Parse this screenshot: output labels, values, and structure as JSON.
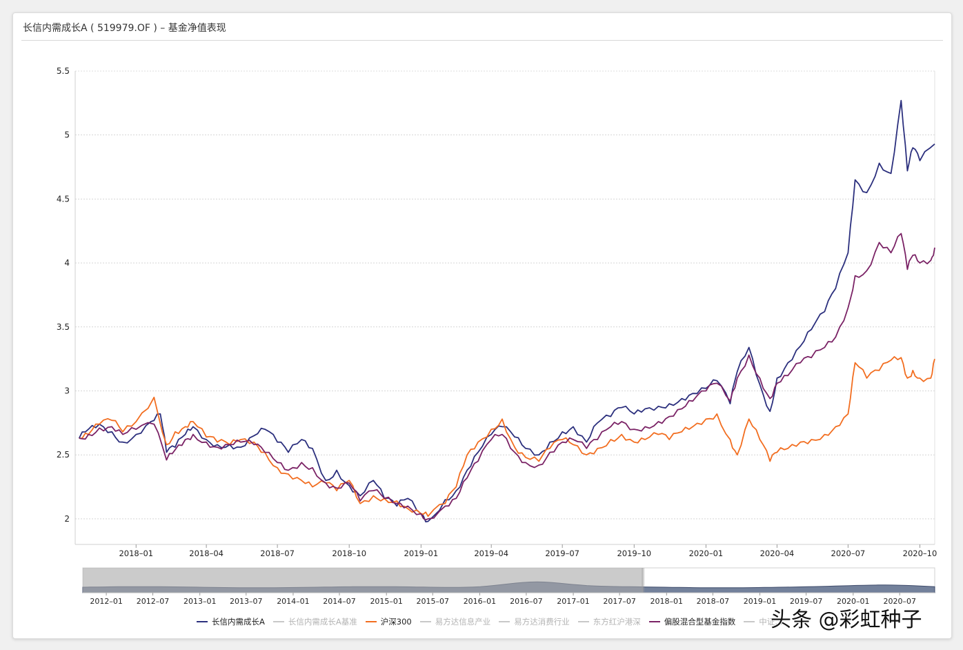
{
  "window": {
    "title": "长信内需成长A ( 519979.OF ) – 基金净值表现"
  },
  "watermark": "头条 @彩虹种子",
  "colors": {
    "fund": "#2b2f7d",
    "csi300": "#f26d1f",
    "mixed_index": "#7a2265",
    "inactive": "#c8c8c8",
    "grid": "#bdbdbd"
  },
  "legend": [
    {
      "name": "长信内需成长A",
      "color": "#2b2f7d",
      "active": true
    },
    {
      "name": "长信内需成长A基准",
      "color": "#c8c8c8",
      "active": false
    },
    {
      "name": "沪深300",
      "color": "#f26d1f",
      "active": true
    },
    {
      "name": "易方达信息产业",
      "color": "#c8c8c8",
      "active": false
    },
    {
      "name": "易方达消费行业",
      "color": "#c8c8c8",
      "active": false
    },
    {
      "name": "东方红沪港深",
      "color": "#c8c8c8",
      "active": false
    },
    {
      "name": "偏股混合型基金指数",
      "color": "#7a2265",
      "active": true
    },
    {
      "name": "中证…",
      "color": "#c8c8c8",
      "active": false
    }
  ],
  "navigator": {
    "tick_labels": [
      "2012–01",
      "2012–07",
      "2013–01",
      "2013–07",
      "2014–01",
      "2014–07",
      "2015–01",
      "2015–07",
      "2016–01",
      "2016–07",
      "2017–01",
      "2017–07",
      "2018–01",
      "2018–07",
      "2019–01",
      "2019–07",
      "2020–01",
      "2020–07"
    ],
    "selection_start": "2017-10"
  },
  "chart_data": {
    "type": "line",
    "x_axis_labels": [
      "2018–01",
      "2018–04",
      "2018–07",
      "2018–10",
      "2019–01",
      "2019–04",
      "2019–07",
      "2019–10",
      "2020–01",
      "2020–04",
      "2020–07",
      "2020–10"
    ],
    "y_axis_labels": [
      "5.5",
      "5",
      "4.5",
      "4",
      "3.5",
      "3",
      "2.5",
      "2"
    ],
    "ylim": [
      1.8,
      5.5
    ],
    "xlim": [
      "2017-10-15",
      "2020-10-20"
    ],
    "grid": true,
    "legend_position": "bottom",
    "series": [
      {
        "name": "长信内需成长A",
        "color": "#2b2f7d",
        "points": [
          [
            "2017-10-20",
            2.63
          ],
          [
            "2017-11-01",
            2.7
          ],
          [
            "2017-11-15",
            2.74
          ],
          [
            "2017-12-01",
            2.68
          ],
          [
            "2017-12-15",
            2.6
          ],
          [
            "2018-01-01",
            2.66
          ],
          [
            "2018-01-20",
            2.76
          ],
          [
            "2018-02-01",
            2.82
          ],
          [
            "2018-02-09",
            2.52
          ],
          [
            "2018-02-20",
            2.56
          ],
          [
            "2018-03-05",
            2.66
          ],
          [
            "2018-03-15",
            2.72
          ],
          [
            "2018-04-01",
            2.62
          ],
          [
            "2018-04-15",
            2.58
          ],
          [
            "2018-05-01",
            2.58
          ],
          [
            "2018-05-15",
            2.56
          ],
          [
            "2018-06-01",
            2.65
          ],
          [
            "2018-06-15",
            2.7
          ],
          [
            "2018-07-01",
            2.6
          ],
          [
            "2018-07-15",
            2.52
          ],
          [
            "2018-08-01",
            2.62
          ],
          [
            "2018-08-15",
            2.55
          ],
          [
            "2018-09-01",
            2.3
          ],
          [
            "2018-09-15",
            2.38
          ],
          [
            "2018-10-01",
            2.26
          ],
          [
            "2018-10-15",
            2.18
          ],
          [
            "2018-11-01",
            2.3
          ],
          [
            "2018-11-15",
            2.16
          ],
          [
            "2018-12-01",
            2.1
          ],
          [
            "2018-12-15",
            2.16
          ],
          [
            "2019-01-01",
            2.04
          ],
          [
            "2019-01-10",
            1.98
          ],
          [
            "2019-02-01",
            2.15
          ],
          [
            "2019-02-15",
            2.22
          ],
          [
            "2019-03-01",
            2.38
          ],
          [
            "2019-03-15",
            2.52
          ],
          [
            "2019-04-01",
            2.66
          ],
          [
            "2019-04-15",
            2.72
          ],
          [
            "2019-05-01",
            2.64
          ],
          [
            "2019-05-15",
            2.55
          ],
          [
            "2019-06-01",
            2.5
          ],
          [
            "2019-06-15",
            2.6
          ],
          [
            "2019-07-01",
            2.68
          ],
          [
            "2019-07-15",
            2.72
          ],
          [
            "2019-08-01",
            2.6
          ],
          [
            "2019-08-15",
            2.75
          ],
          [
            "2019-09-01",
            2.8
          ],
          [
            "2019-09-15",
            2.87
          ],
          [
            "2019-10-01",
            2.82
          ],
          [
            "2019-10-15",
            2.86
          ],
          [
            "2019-11-01",
            2.88
          ],
          [
            "2019-11-15",
            2.9
          ],
          [
            "2019-12-01",
            2.94
          ],
          [
            "2019-12-15",
            2.98
          ],
          [
            "2020-01-01",
            3.02
          ],
          [
            "2020-01-15",
            3.08
          ],
          [
            "2020-02-01",
            2.9
          ],
          [
            "2020-02-10",
            3.15
          ],
          [
            "2020-02-25",
            3.34
          ],
          [
            "2020-03-10",
            3.05
          ],
          [
            "2020-03-23",
            2.84
          ],
          [
            "2020-04-01",
            3.1
          ],
          [
            "2020-04-15",
            3.22
          ],
          [
            "2020-05-01",
            3.35
          ],
          [
            "2020-05-15",
            3.48
          ],
          [
            "2020-06-01",
            3.62
          ],
          [
            "2020-06-15",
            3.8
          ],
          [
            "2020-07-01",
            4.08
          ],
          [
            "2020-07-10",
            4.65
          ],
          [
            "2020-07-25",
            4.55
          ],
          [
            "2020-08-10",
            4.78
          ],
          [
            "2020-08-25",
            4.7
          ],
          [
            "2020-09-07",
            5.27
          ],
          [
            "2020-09-15",
            4.72
          ],
          [
            "2020-09-22",
            4.9
          ],
          [
            "2020-10-01",
            4.8
          ],
          [
            "2020-10-20",
            4.93
          ]
        ]
      },
      {
        "name": "沪深300",
        "color": "#f26d1f",
        "points": [
          [
            "2017-10-20",
            2.63
          ],
          [
            "2017-11-01",
            2.66
          ],
          [
            "2017-11-15",
            2.74
          ],
          [
            "2017-12-01",
            2.77
          ],
          [
            "2017-12-15",
            2.68
          ],
          [
            "2018-01-01",
            2.76
          ],
          [
            "2018-01-24",
            2.95
          ],
          [
            "2018-02-09",
            2.58
          ],
          [
            "2018-02-20",
            2.68
          ],
          [
            "2018-03-05",
            2.72
          ],
          [
            "2018-03-15",
            2.76
          ],
          [
            "2018-04-01",
            2.64
          ],
          [
            "2018-04-15",
            2.6
          ],
          [
            "2018-05-01",
            2.58
          ],
          [
            "2018-05-15",
            2.62
          ],
          [
            "2018-06-01",
            2.6
          ],
          [
            "2018-06-15",
            2.52
          ],
          [
            "2018-07-01",
            2.4
          ],
          [
            "2018-07-15",
            2.35
          ],
          [
            "2018-08-01",
            2.3
          ],
          [
            "2018-08-15",
            2.25
          ],
          [
            "2018-09-01",
            2.28
          ],
          [
            "2018-09-15",
            2.22
          ],
          [
            "2018-10-01",
            2.3
          ],
          [
            "2018-10-15",
            2.12
          ],
          [
            "2018-11-01",
            2.18
          ],
          [
            "2018-11-15",
            2.16
          ],
          [
            "2018-12-01",
            2.14
          ],
          [
            "2018-12-15",
            2.08
          ],
          [
            "2019-01-01",
            2.04
          ],
          [
            "2019-01-10",
            2.02
          ],
          [
            "2019-02-01",
            2.12
          ],
          [
            "2019-02-15",
            2.25
          ],
          [
            "2019-03-01",
            2.5
          ],
          [
            "2019-03-15",
            2.6
          ],
          [
            "2019-04-01",
            2.7
          ],
          [
            "2019-04-15",
            2.78
          ],
          [
            "2019-05-01",
            2.56
          ],
          [
            "2019-05-15",
            2.48
          ],
          [
            "2019-06-01",
            2.45
          ],
          [
            "2019-06-15",
            2.55
          ],
          [
            "2019-07-01",
            2.62
          ],
          [
            "2019-07-15",
            2.58
          ],
          [
            "2019-08-01",
            2.5
          ],
          [
            "2019-08-15",
            2.55
          ],
          [
            "2019-09-01",
            2.62
          ],
          [
            "2019-09-15",
            2.66
          ],
          [
            "2019-10-01",
            2.6
          ],
          [
            "2019-10-15",
            2.62
          ],
          [
            "2019-11-01",
            2.66
          ],
          [
            "2019-11-15",
            2.62
          ],
          [
            "2019-12-01",
            2.68
          ],
          [
            "2019-12-15",
            2.72
          ],
          [
            "2020-01-01",
            2.78
          ],
          [
            "2020-01-15",
            2.82
          ],
          [
            "2020-02-01",
            2.62
          ],
          [
            "2020-02-10",
            2.5
          ],
          [
            "2020-02-25",
            2.78
          ],
          [
            "2020-03-10",
            2.62
          ],
          [
            "2020-03-23",
            2.45
          ],
          [
            "2020-04-01",
            2.52
          ],
          [
            "2020-04-15",
            2.55
          ],
          [
            "2020-05-01",
            2.6
          ],
          [
            "2020-05-15",
            2.62
          ],
          [
            "2020-06-01",
            2.66
          ],
          [
            "2020-06-15",
            2.72
          ],
          [
            "2020-07-01",
            2.82
          ],
          [
            "2020-07-10",
            3.22
          ],
          [
            "2020-07-25",
            3.1
          ],
          [
            "2020-08-10",
            3.16
          ],
          [
            "2020-08-25",
            3.24
          ],
          [
            "2020-09-07",
            3.26
          ],
          [
            "2020-09-15",
            3.1
          ],
          [
            "2020-09-22",
            3.16
          ],
          [
            "2020-10-01",
            3.1
          ],
          [
            "2020-10-15",
            3.1
          ],
          [
            "2020-10-20",
            3.25
          ]
        ]
      },
      {
        "name": "偏股混合型基金指数",
        "color": "#7a2265",
        "points": [
          [
            "2017-10-20",
            2.63
          ],
          [
            "2017-11-01",
            2.66
          ],
          [
            "2017-11-15",
            2.71
          ],
          [
            "2017-12-01",
            2.72
          ],
          [
            "2017-12-15",
            2.66
          ],
          [
            "2018-01-01",
            2.7
          ],
          [
            "2018-01-24",
            2.74
          ],
          [
            "2018-02-09",
            2.46
          ],
          [
            "2018-02-20",
            2.54
          ],
          [
            "2018-03-05",
            2.62
          ],
          [
            "2018-03-15",
            2.66
          ],
          [
            "2018-04-01",
            2.6
          ],
          [
            "2018-04-15",
            2.56
          ],
          [
            "2018-05-01",
            2.58
          ],
          [
            "2018-05-15",
            2.6
          ],
          [
            "2018-06-01",
            2.58
          ],
          [
            "2018-06-15",
            2.52
          ],
          [
            "2018-07-01",
            2.44
          ],
          [
            "2018-07-15",
            2.38
          ],
          [
            "2018-08-01",
            2.44
          ],
          [
            "2018-08-15",
            2.4
          ],
          [
            "2018-09-01",
            2.28
          ],
          [
            "2018-09-15",
            2.24
          ],
          [
            "2018-10-01",
            2.28
          ],
          [
            "2018-10-15",
            2.14
          ],
          [
            "2018-11-01",
            2.22
          ],
          [
            "2018-11-15",
            2.16
          ],
          [
            "2018-12-01",
            2.12
          ],
          [
            "2018-12-15",
            2.1
          ],
          [
            "2019-01-01",
            2.04
          ],
          [
            "2019-01-10",
            2.0
          ],
          [
            "2019-02-01",
            2.1
          ],
          [
            "2019-02-15",
            2.16
          ],
          [
            "2019-03-01",
            2.32
          ],
          [
            "2019-03-15",
            2.45
          ],
          [
            "2019-04-01",
            2.62
          ],
          [
            "2019-04-15",
            2.66
          ],
          [
            "2019-05-01",
            2.52
          ],
          [
            "2019-05-15",
            2.44
          ],
          [
            "2019-06-01",
            2.42
          ],
          [
            "2019-06-15",
            2.52
          ],
          [
            "2019-07-01",
            2.6
          ],
          [
            "2019-07-15",
            2.62
          ],
          [
            "2019-08-01",
            2.55
          ],
          [
            "2019-08-15",
            2.62
          ],
          [
            "2019-09-01",
            2.72
          ],
          [
            "2019-09-15",
            2.76
          ],
          [
            "2019-10-01",
            2.7
          ],
          [
            "2019-10-15",
            2.72
          ],
          [
            "2019-11-01",
            2.76
          ],
          [
            "2019-11-15",
            2.8
          ],
          [
            "2019-12-01",
            2.86
          ],
          [
            "2019-12-15",
            2.92
          ],
          [
            "2020-01-01",
            3.0
          ],
          [
            "2020-01-15",
            3.06
          ],
          [
            "2020-02-01",
            2.92
          ],
          [
            "2020-02-10",
            3.1
          ],
          [
            "2020-02-25",
            3.28
          ],
          [
            "2020-03-10",
            3.1
          ],
          [
            "2020-03-23",
            2.94
          ],
          [
            "2020-04-01",
            3.06
          ],
          [
            "2020-04-15",
            3.12
          ],
          [
            "2020-05-01",
            3.22
          ],
          [
            "2020-05-15",
            3.26
          ],
          [
            "2020-06-01",
            3.34
          ],
          [
            "2020-06-15",
            3.42
          ],
          [
            "2020-07-01",
            3.65
          ],
          [
            "2020-07-10",
            3.9
          ],
          [
            "2020-07-25",
            3.94
          ],
          [
            "2020-08-10",
            4.16
          ],
          [
            "2020-08-25",
            4.08
          ],
          [
            "2020-09-07",
            4.23
          ],
          [
            "2020-09-15",
            3.95
          ],
          [
            "2020-09-22",
            4.06
          ],
          [
            "2020-10-01",
            4.0
          ],
          [
            "2020-10-15",
            4.02
          ],
          [
            "2020-10-20",
            4.12
          ]
        ]
      }
    ]
  }
}
